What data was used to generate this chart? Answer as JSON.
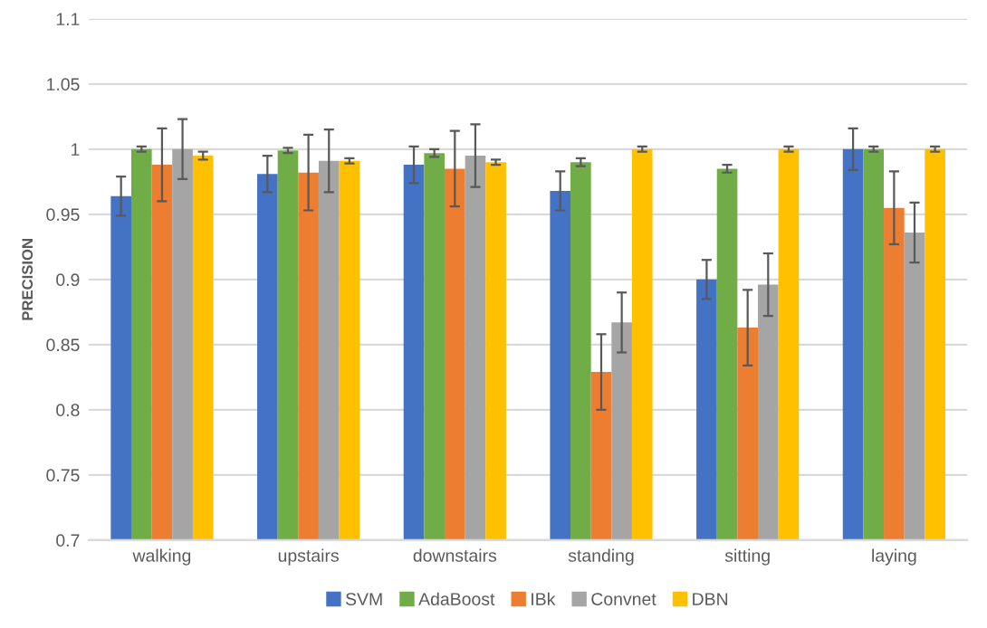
{
  "chart_data": {
    "type": "bar",
    "ylabel": "PRECISION",
    "categories": [
      "walking",
      "upstairs",
      "downstairs",
      "standing",
      "sitting",
      "laying"
    ],
    "series": [
      {
        "name": "SVM",
        "color": "#4472c4",
        "values": [
          0.964,
          0.981,
          0.988,
          0.968,
          0.9,
          1.0
        ],
        "errors": [
          0.015,
          0.014,
          0.014,
          0.015,
          0.015,
          0.016
        ]
      },
      {
        "name": "AdaBoost",
        "color": "#70ad47",
        "values": [
          1.0,
          0.999,
          0.997,
          0.99,
          0.985,
          1.0
        ],
        "errors": [
          0.002,
          0.002,
          0.003,
          0.003,
          0.003,
          0.002
        ]
      },
      {
        "name": "IBk",
        "color": "#ed7d31",
        "values": [
          0.988,
          0.982,
          0.985,
          0.829,
          0.863,
          0.955
        ],
        "errors": [
          0.028,
          0.029,
          0.029,
          0.029,
          0.029,
          0.028
        ]
      },
      {
        "name": "Convnet",
        "color": "#a5a5a5",
        "values": [
          1.0,
          0.991,
          0.995,
          0.867,
          0.896,
          0.936
        ],
        "errors": [
          0.023,
          0.024,
          0.024,
          0.023,
          0.024,
          0.023
        ]
      },
      {
        "name": "DBN",
        "color": "#ffc000",
        "values": [
          0.995,
          0.991,
          0.99,
          1.0,
          1.0,
          1.0
        ],
        "errors": [
          0.003,
          0.002,
          0.002,
          0.002,
          0.002,
          0.002
        ]
      }
    ],
    "ylim": [
      0.7,
      1.1
    ],
    "yticks": [
      0.7,
      0.75,
      0.8,
      0.85,
      0.9,
      0.95,
      1,
      1.05,
      1.1
    ],
    "grid": "y",
    "legend": "bottom"
  }
}
